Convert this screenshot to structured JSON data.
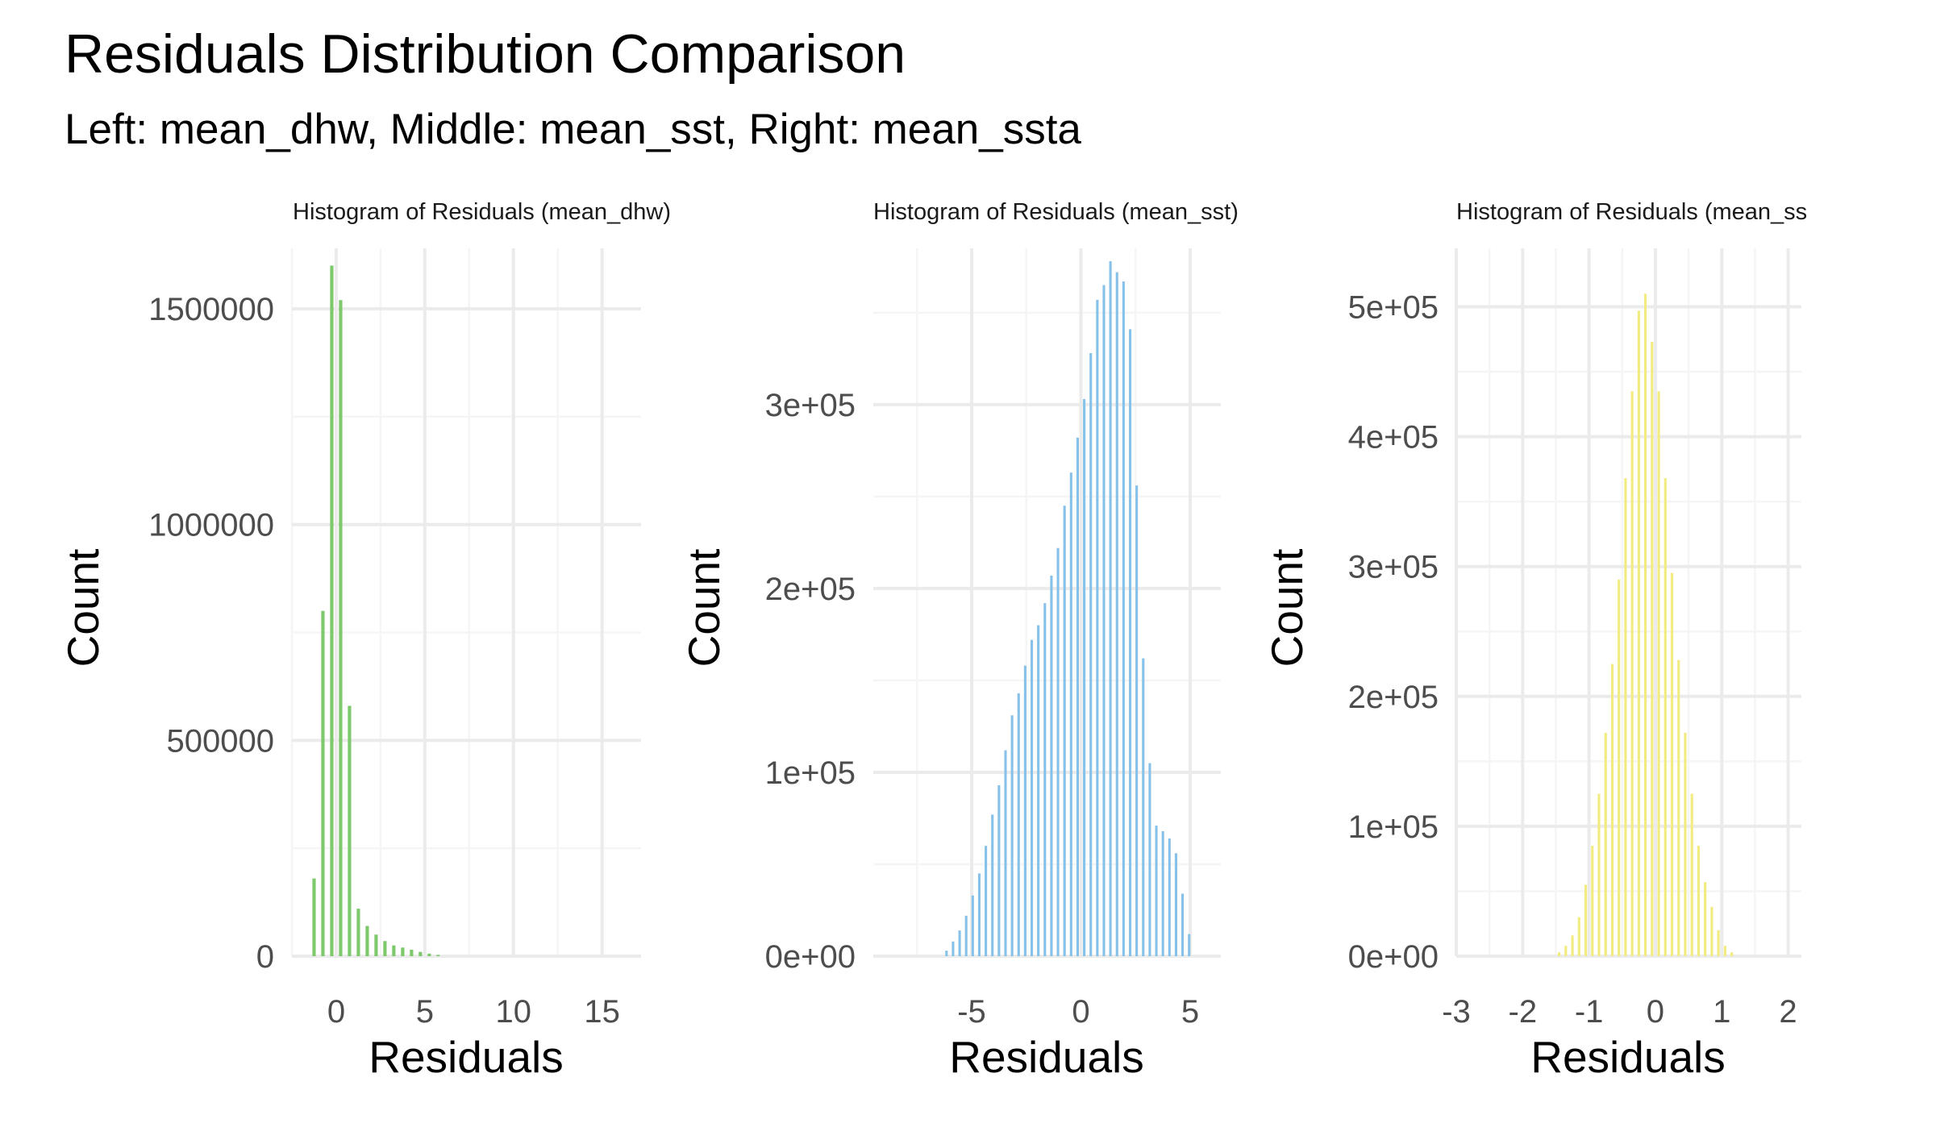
{
  "figure": {
    "title": "Residuals Distribution Comparison",
    "subtitle": "Left: mean_dhw, Middle: mean_sst, Right: mean_ssta"
  },
  "chart_data": [
    {
      "type": "histogram",
      "title": "Histogram of Residuals (mean_dhw)",
      "xlabel": "Residuals",
      "ylabel": "Count",
      "color": "#7dc96b",
      "grid": true,
      "xlim": [
        -2.5,
        17.2
      ],
      "ylim": [
        0,
        1640000
      ],
      "xticks": [
        0,
        5,
        10,
        15
      ],
      "yticks": [
        0,
        500000,
        1000000,
        1500000
      ],
      "ytick_labels": [
        "0",
        "500000",
        "1000000",
        "1500000"
      ],
      "bin_width": 0.5,
      "bins": [
        {
          "x": -1.25,
          "count": 180000
        },
        {
          "x": -0.75,
          "count": 800000
        },
        {
          "x": -0.25,
          "count": 1600000
        },
        {
          "x": 0.25,
          "count": 1520000
        },
        {
          "x": 0.75,
          "count": 580000
        },
        {
          "x": 1.25,
          "count": 110000
        },
        {
          "x": 1.75,
          "count": 70000
        },
        {
          "x": 2.25,
          "count": 50000
        },
        {
          "x": 2.75,
          "count": 35000
        },
        {
          "x": 3.25,
          "count": 25000
        },
        {
          "x": 3.75,
          "count": 20000
        },
        {
          "x": 4.25,
          "count": 15000
        },
        {
          "x": 4.75,
          "count": 10000
        },
        {
          "x": 5.25,
          "count": 6000
        },
        {
          "x": 5.75,
          "count": 3000
        }
      ]
    },
    {
      "type": "histogram",
      "title": "Histogram of Residuals (mean_sst)",
      "xlabel": "Residuals",
      "ylabel": "Count",
      "color": "#86c1e9",
      "grid": true,
      "xlim": [
        -9.5,
        6.4
      ],
      "ylim": [
        0,
        385000
      ],
      "xticks": [
        -5,
        0,
        5
      ],
      "yticks": [
        0,
        100000,
        200000,
        300000
      ],
      "ytick_labels": [
        "0e+00",
        "1e+05",
        "2e+05",
        "3e+05"
      ],
      "bin_width": 0.3,
      "bins": [
        {
          "x": -6.15,
          "count": 3000
        },
        {
          "x": -5.85,
          "count": 8000
        },
        {
          "x": -5.55,
          "count": 14000
        },
        {
          "x": -5.25,
          "count": 22000
        },
        {
          "x": -4.95,
          "count": 33000
        },
        {
          "x": -4.65,
          "count": 45000
        },
        {
          "x": -4.35,
          "count": 60000
        },
        {
          "x": -4.05,
          "count": 77000
        },
        {
          "x": -3.75,
          "count": 93000
        },
        {
          "x": -3.45,
          "count": 112000
        },
        {
          "x": -3.15,
          "count": 131000
        },
        {
          "x": -2.85,
          "count": 143000
        },
        {
          "x": -2.55,
          "count": 158000
        },
        {
          "x": -2.25,
          "count": 172000
        },
        {
          "x": -1.95,
          "count": 180000
        },
        {
          "x": -1.65,
          "count": 192000
        },
        {
          "x": -1.35,
          "count": 207000
        },
        {
          "x": -1.05,
          "count": 222000
        },
        {
          "x": -0.75,
          "count": 245000
        },
        {
          "x": -0.45,
          "count": 263000
        },
        {
          "x": -0.15,
          "count": 282000
        },
        {
          "x": 0.15,
          "count": 303000
        },
        {
          "x": 0.45,
          "count": 328000
        },
        {
          "x": 0.75,
          "count": 357000
        },
        {
          "x": 1.05,
          "count": 365000
        },
        {
          "x": 1.35,
          "count": 378000
        },
        {
          "x": 1.65,
          "count": 372000
        },
        {
          "x": 1.95,
          "count": 367000
        },
        {
          "x": 2.25,
          "count": 341000
        },
        {
          "x": 2.55,
          "count": 256000
        },
        {
          "x": 2.85,
          "count": 162000
        },
        {
          "x": 3.15,
          "count": 105000
        },
        {
          "x": 3.45,
          "count": 71000
        },
        {
          "x": 3.75,
          "count": 68000
        },
        {
          "x": 4.05,
          "count": 64000
        },
        {
          "x": 4.35,
          "count": 56000
        },
        {
          "x": 4.65,
          "count": 34000
        },
        {
          "x": 4.95,
          "count": 12000
        }
      ]
    },
    {
      "type": "histogram",
      "title": "Histogram of Residuals (mean_ss",
      "xlabel": "Residuals",
      "ylabel": "Count",
      "color": "#f2eb7f",
      "grid": true,
      "xlim": [
        -3.0,
        2.2
      ],
      "ylim": [
        0,
        545000
      ],
      "xticks": [
        -3,
        -2,
        -1,
        0,
        1,
        2
      ],
      "yticks": [
        0,
        100000,
        200000,
        300000,
        400000,
        500000
      ],
      "ytick_labels": [
        "0e+00",
        "1e+05",
        "2e+05",
        "3e+05",
        "4e+05",
        "5e+05"
      ],
      "bin_width": 0.1,
      "bins": [
        {
          "x": -1.45,
          "count": 3000
        },
        {
          "x": -1.35,
          "count": 8000
        },
        {
          "x": -1.25,
          "count": 16000
        },
        {
          "x": -1.15,
          "count": 30000
        },
        {
          "x": -1.05,
          "count": 55000
        },
        {
          "x": -0.95,
          "count": 85000
        },
        {
          "x": -0.85,
          "count": 125000
        },
        {
          "x": -0.75,
          "count": 172000
        },
        {
          "x": -0.65,
          "count": 225000
        },
        {
          "x": -0.55,
          "count": 290000
        },
        {
          "x": -0.45,
          "count": 368000
        },
        {
          "x": -0.35,
          "count": 435000
        },
        {
          "x": -0.25,
          "count": 497000
        },
        {
          "x": -0.15,
          "count": 510000
        },
        {
          "x": -0.05,
          "count": 473000
        },
        {
          "x": 0.05,
          "count": 435000
        },
        {
          "x": 0.15,
          "count": 368000
        },
        {
          "x": 0.25,
          "count": 295000
        },
        {
          "x": 0.35,
          "count": 228000
        },
        {
          "x": 0.45,
          "count": 172000
        },
        {
          "x": 0.55,
          "count": 125000
        },
        {
          "x": 0.65,
          "count": 85000
        },
        {
          "x": 0.75,
          "count": 57000
        },
        {
          "x": 0.85,
          "count": 38000
        },
        {
          "x": 0.95,
          "count": 20000
        },
        {
          "x": 1.05,
          "count": 8000
        },
        {
          "x": 1.15,
          "count": 3000
        }
      ]
    }
  ]
}
